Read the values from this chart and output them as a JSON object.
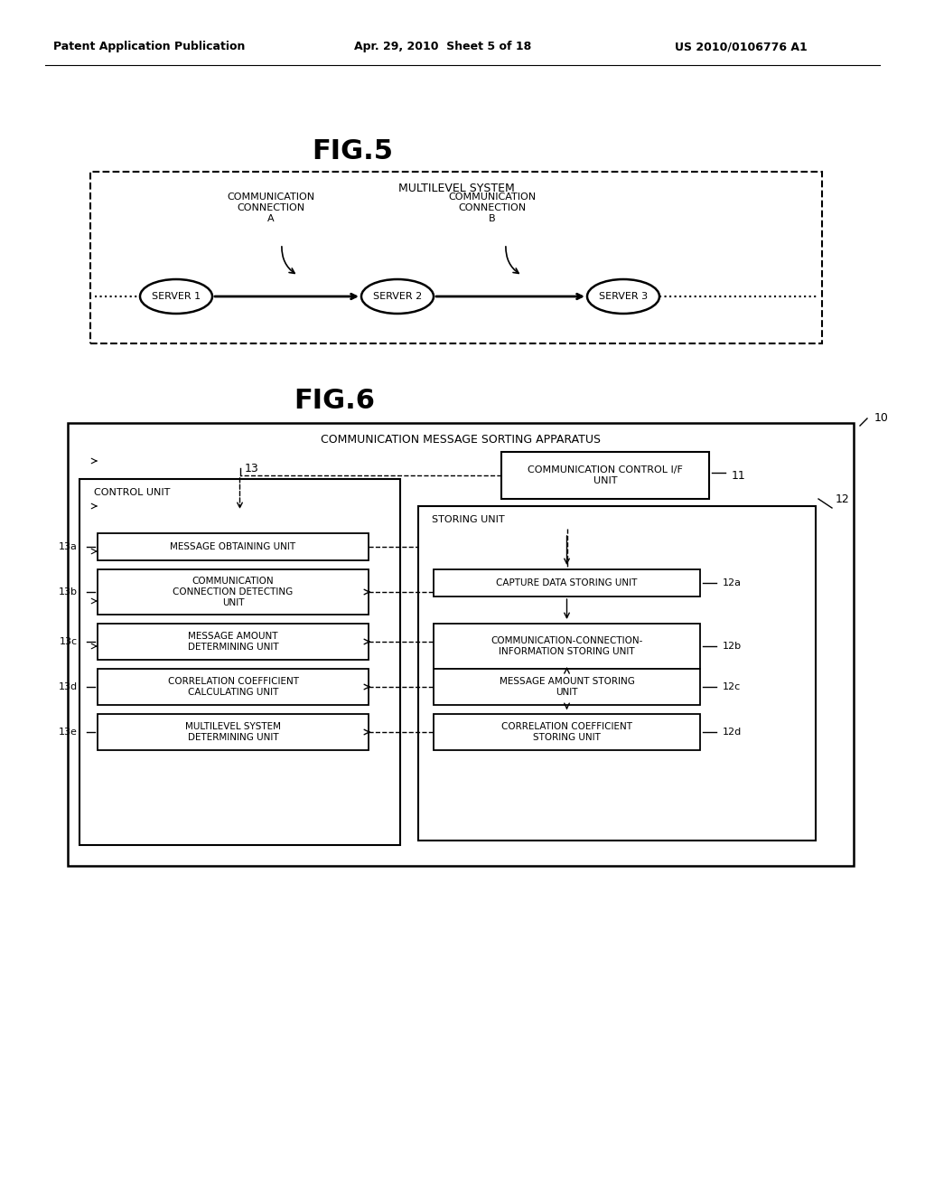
{
  "bg_color": "#ffffff",
  "header_left": "Patent Application Publication",
  "header_center": "Apr. 29, 2010  Sheet 5 of 18",
  "header_right": "US 2010/0106776 A1",
  "fig5_title": "FIG.5",
  "fig6_title": "FIG.6",
  "multilevel_label": "MULTILEVEL SYSTEM",
  "comm_conn_a_label": "COMMUNICATION\nCONNECTION\nA",
  "comm_conn_b_label": "COMMUNICATION\nCONNECTION\nB",
  "server1_label": "SERVER 1",
  "server2_label": "SERVER 2",
  "server3_label": "SERVER 3",
  "apparatus_label": "COMMUNICATION MESSAGE SORTING APPARATUS",
  "label_10": "10",
  "label_11": "11",
  "label_12": "12",
  "label_13": "13",
  "control_unit_label": "CONTROL UNIT",
  "comm_ctrl_if_label": "COMMUNICATION CONTROL I/F\nUNIT",
  "storing_unit_label": "STORING UNIT",
  "boxes_left": [
    {
      "id": "13a",
      "label": "MESSAGE OBTAINING UNIT"
    },
    {
      "id": "13b",
      "label": "COMMUNICATION\nCONNECTION DETECTING\nUNIT"
    },
    {
      "id": "13c",
      "label": "MESSAGE AMOUNT\nDETERMINING UNIT"
    },
    {
      "id": "13d",
      "label": "CORRELATION COEFFICIENT\nCALCULATING UNIT"
    },
    {
      "id": "13e",
      "label": "MULTILEVEL SYSTEM\nDETERMINING UNIT"
    }
  ],
  "boxes_right": [
    {
      "id": "12a",
      "label": "CAPTURE DATA STORING UNIT"
    },
    {
      "id": "12b",
      "label": "COMMUNICATION-CONNECTION-\nINFORMATION STORING UNIT"
    },
    {
      "id": "12c",
      "label": "MESSAGE AMOUNT STORING\nUNIT"
    },
    {
      "id": "12d",
      "label": "CORRELATION COEFFICIENT\nSTORING UNIT"
    }
  ]
}
